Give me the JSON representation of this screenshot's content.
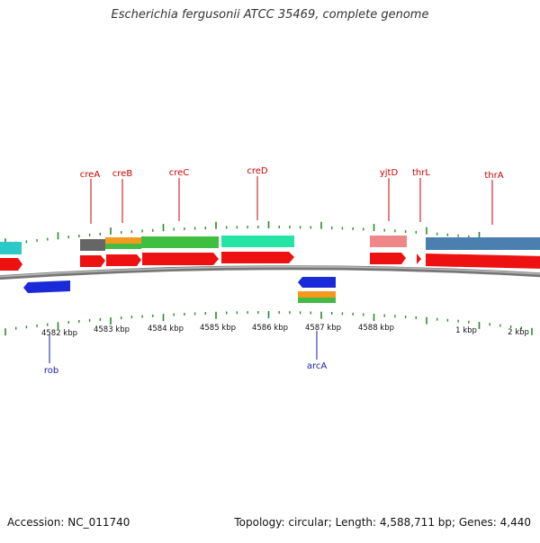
{
  "title": "Escherichia fergusonii ATCC 35469, complete genome",
  "footer": {
    "accession": "Accession: NC_011740",
    "summary": "Topology: circular; Length: 4,588,711 bp; Genes: 4,440"
  },
  "colors": {
    "top_label": "#cc0000",
    "bottom_label": "#1a1aaa",
    "tick": "#2a8a2a",
    "backbone": "#888888"
  },
  "kbp_labels": [
    "4582 kbp",
    "4583 kbp",
    "4584 kbp",
    "4585 kbp",
    "4586 kbp",
    "4587 kbp",
    "4588 kbp",
    "1 kbp",
    "2 kbp"
  ],
  "top_genes": [
    "creA",
    "creB",
    "creC",
    "creD",
    "yjtD",
    "thrL",
    "thrA"
  ],
  "bottom_genes": [
    "rob",
    "arcA"
  ]
}
